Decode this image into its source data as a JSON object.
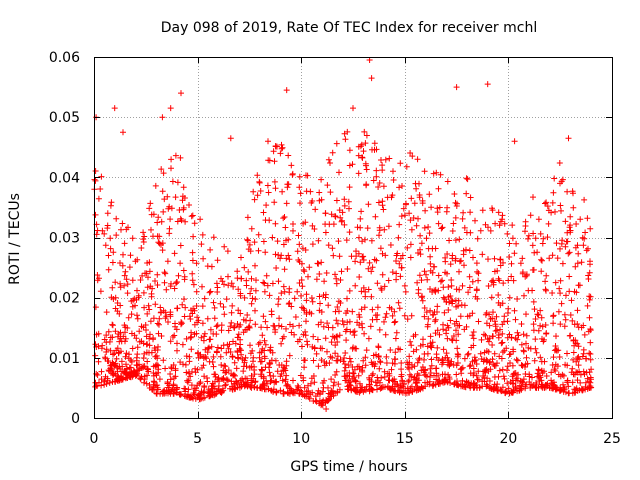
{
  "chart_data": {
    "type": "scatter",
    "title": "Day 098 of 2019, Rate Of TEC Index for receiver mchl",
    "xlabel": "GPS time / hours",
    "ylabel": "ROTI / TECUs",
    "xlim": [
      0,
      25
    ],
    "ylim": [
      0,
      0.06
    ],
    "x_ticks": [
      0,
      5,
      10,
      15,
      20,
      25
    ],
    "x_tick_labels": [
      "0",
      "5",
      "10",
      "15",
      "20",
      "25"
    ],
    "y_ticks": [
      0,
      0.01,
      0.02,
      0.03,
      0.04,
      0.05,
      0.06
    ],
    "y_tick_labels": [
      "0",
      "0.01",
      "0.02",
      "0.03",
      "0.04",
      "0.05",
      "0.06"
    ],
    "grid": true,
    "marker": "+",
    "colors": {
      "points": "#ff0000",
      "grid": "#a0a0a0",
      "axes": "#000000"
    },
    "series": [
      {
        "name": "ROTI",
        "notable_points": [
          {
            "x": 0.1,
            "y": 0.05
          },
          {
            "x": 1.0,
            "y": 0.0515
          },
          {
            "x": 1.4,
            "y": 0.0475
          },
          {
            "x": 3.3,
            "y": 0.05
          },
          {
            "x": 3.7,
            "y": 0.0515
          },
          {
            "x": 4.2,
            "y": 0.054
          },
          {
            "x": 6.6,
            "y": 0.0465
          },
          {
            "x": 8.4,
            "y": 0.046
          },
          {
            "x": 9.3,
            "y": 0.0545
          },
          {
            "x": 12.5,
            "y": 0.0515
          },
          {
            "x": 13.3,
            "y": 0.0595
          },
          {
            "x": 13.4,
            "y": 0.0565
          },
          {
            "x": 17.5,
            "y": 0.055
          },
          {
            "x": 19.0,
            "y": 0.0555
          },
          {
            "x": 20.3,
            "y": 0.046
          },
          {
            "x": 22.9,
            "y": 0.0465
          },
          {
            "x": 11.2,
            "y": 0.0015
          },
          {
            "x": 11.2,
            "y": 0.003
          }
        ],
        "envelope_hours": [
          0,
          1,
          2,
          3,
          4,
          5,
          6,
          7,
          8,
          9,
          10,
          11,
          12,
          13,
          14,
          15,
          16,
          17,
          18,
          19,
          20,
          21,
          22,
          23,
          24
        ],
        "envelope_upper": [
          0.044,
          0.035,
          0.03,
          0.04,
          0.046,
          0.034,
          0.03,
          0.028,
          0.043,
          0.046,
          0.04,
          0.042,
          0.048,
          0.05,
          0.046,
          0.045,
          0.042,
          0.041,
          0.04,
          0.036,
          0.033,
          0.036,
          0.04,
          0.045,
          0.032
        ],
        "envelope_lower": [
          0.005,
          0.006,
          0.007,
          0.004,
          0.004,
          0.003,
          0.004,
          0.005,
          0.005,
          0.004,
          0.004,
          0.002,
          0.005,
          0.004,
          0.005,
          0.004,
          0.005,
          0.006,
          0.005,
          0.005,
          0.004,
          0.005,
          0.005,
          0.004,
          0.005
        ]
      }
    ]
  }
}
